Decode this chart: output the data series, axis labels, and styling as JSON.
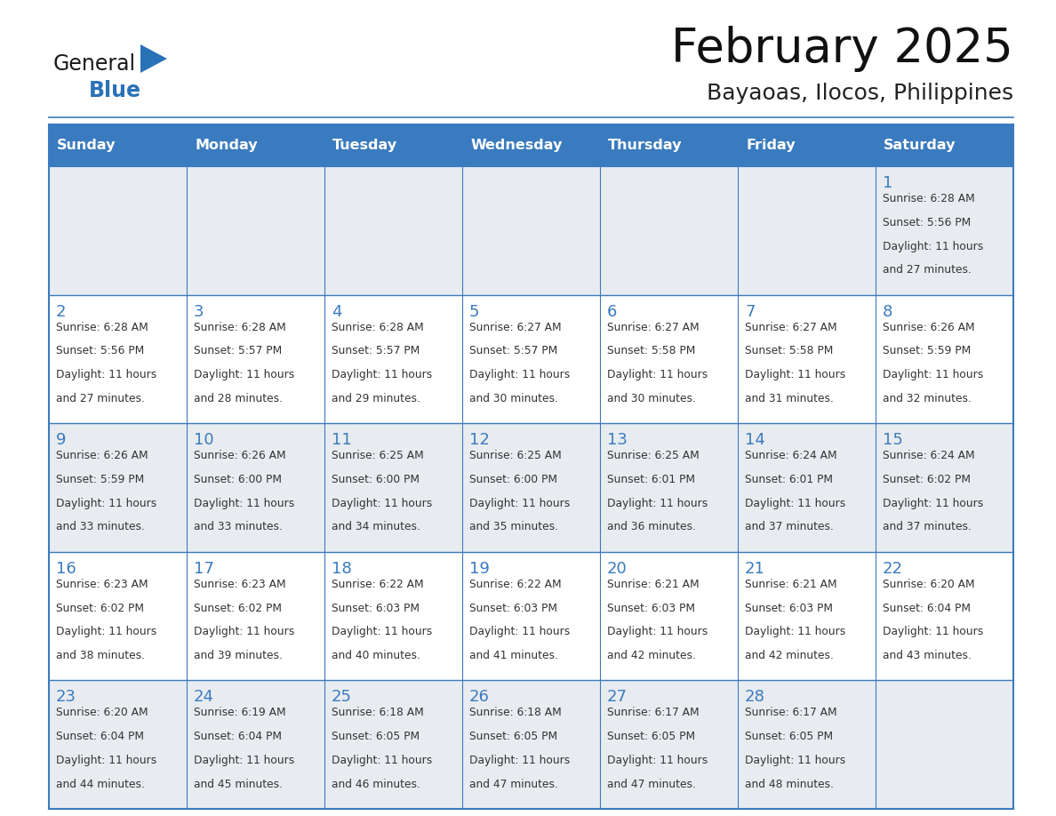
{
  "title": "February 2025",
  "subtitle": "Bayaoas, Ilocos, Philippines",
  "days_of_week": [
    "Sunday",
    "Monday",
    "Tuesday",
    "Wednesday",
    "Thursday",
    "Friday",
    "Saturday"
  ],
  "header_bg": "#3a7bbf",
  "header_text": "#ffffff",
  "cell_bg_white": "#ffffff",
  "cell_bg_gray": "#e8ecf0",
  "border_color": "#3a7bbf",
  "day_number_color": "#3a7bbf",
  "cell_text_color": "#333333",
  "title_color": "#111111",
  "subtitle_color": "#222222",
  "logo_general_color": "#1a1a1a",
  "logo_blue_color": "#2a72b8",
  "logo_triangle_color": "#2a72b8",
  "calendar_data": [
    [
      null,
      null,
      null,
      null,
      null,
      null,
      {
        "day": 1,
        "sunrise": "6:28 AM",
        "sunset": "5:56 PM",
        "daylight_hours": 11,
        "daylight_minutes": 27
      }
    ],
    [
      {
        "day": 2,
        "sunrise": "6:28 AM",
        "sunset": "5:56 PM",
        "daylight_hours": 11,
        "daylight_minutes": 27
      },
      {
        "day": 3,
        "sunrise": "6:28 AM",
        "sunset": "5:57 PM",
        "daylight_hours": 11,
        "daylight_minutes": 28
      },
      {
        "day": 4,
        "sunrise": "6:28 AM",
        "sunset": "5:57 PM",
        "daylight_hours": 11,
        "daylight_minutes": 29
      },
      {
        "day": 5,
        "sunrise": "6:27 AM",
        "sunset": "5:57 PM",
        "daylight_hours": 11,
        "daylight_minutes": 30
      },
      {
        "day": 6,
        "sunrise": "6:27 AM",
        "sunset": "5:58 PM",
        "daylight_hours": 11,
        "daylight_minutes": 30
      },
      {
        "day": 7,
        "sunrise": "6:27 AM",
        "sunset": "5:58 PM",
        "daylight_hours": 11,
        "daylight_minutes": 31
      },
      {
        "day": 8,
        "sunrise": "6:26 AM",
        "sunset": "5:59 PM",
        "daylight_hours": 11,
        "daylight_minutes": 32
      }
    ],
    [
      {
        "day": 9,
        "sunrise": "6:26 AM",
        "sunset": "5:59 PM",
        "daylight_hours": 11,
        "daylight_minutes": 33
      },
      {
        "day": 10,
        "sunrise": "6:26 AM",
        "sunset": "6:00 PM",
        "daylight_hours": 11,
        "daylight_minutes": 33
      },
      {
        "day": 11,
        "sunrise": "6:25 AM",
        "sunset": "6:00 PM",
        "daylight_hours": 11,
        "daylight_minutes": 34
      },
      {
        "day": 12,
        "sunrise": "6:25 AM",
        "sunset": "6:00 PM",
        "daylight_hours": 11,
        "daylight_minutes": 35
      },
      {
        "day": 13,
        "sunrise": "6:25 AM",
        "sunset": "6:01 PM",
        "daylight_hours": 11,
        "daylight_minutes": 36
      },
      {
        "day": 14,
        "sunrise": "6:24 AM",
        "sunset": "6:01 PM",
        "daylight_hours": 11,
        "daylight_minutes": 37
      },
      {
        "day": 15,
        "sunrise": "6:24 AM",
        "sunset": "6:02 PM",
        "daylight_hours": 11,
        "daylight_minutes": 37
      }
    ],
    [
      {
        "day": 16,
        "sunrise": "6:23 AM",
        "sunset": "6:02 PM",
        "daylight_hours": 11,
        "daylight_minutes": 38
      },
      {
        "day": 17,
        "sunrise": "6:23 AM",
        "sunset": "6:02 PM",
        "daylight_hours": 11,
        "daylight_minutes": 39
      },
      {
        "day": 18,
        "sunrise": "6:22 AM",
        "sunset": "6:03 PM",
        "daylight_hours": 11,
        "daylight_minutes": 40
      },
      {
        "day": 19,
        "sunrise": "6:22 AM",
        "sunset": "6:03 PM",
        "daylight_hours": 11,
        "daylight_minutes": 41
      },
      {
        "day": 20,
        "sunrise": "6:21 AM",
        "sunset": "6:03 PM",
        "daylight_hours": 11,
        "daylight_minutes": 42
      },
      {
        "day": 21,
        "sunrise": "6:21 AM",
        "sunset": "6:03 PM",
        "daylight_hours": 11,
        "daylight_minutes": 42
      },
      {
        "day": 22,
        "sunrise": "6:20 AM",
        "sunset": "6:04 PM",
        "daylight_hours": 11,
        "daylight_minutes": 43
      }
    ],
    [
      {
        "day": 23,
        "sunrise": "6:20 AM",
        "sunset": "6:04 PM",
        "daylight_hours": 11,
        "daylight_minutes": 44
      },
      {
        "day": 24,
        "sunrise": "6:19 AM",
        "sunset": "6:04 PM",
        "daylight_hours": 11,
        "daylight_minutes": 45
      },
      {
        "day": 25,
        "sunrise": "6:18 AM",
        "sunset": "6:05 PM",
        "daylight_hours": 11,
        "daylight_minutes": 46
      },
      {
        "day": 26,
        "sunrise": "6:18 AM",
        "sunset": "6:05 PM",
        "daylight_hours": 11,
        "daylight_minutes": 47
      },
      {
        "day": 27,
        "sunrise": "6:17 AM",
        "sunset": "6:05 PM",
        "daylight_hours": 11,
        "daylight_minutes": 47
      },
      {
        "day": 28,
        "sunrise": "6:17 AM",
        "sunset": "6:05 PM",
        "daylight_hours": 11,
        "daylight_minutes": 48
      },
      null
    ]
  ]
}
